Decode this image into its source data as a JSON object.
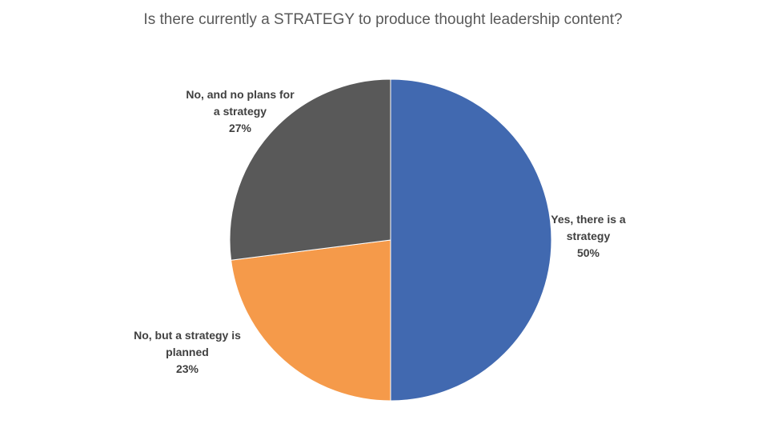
{
  "chart_data": {
    "type": "pie",
    "title": "Is there currently a STRATEGY to produce thought leadership content?",
    "slices": [
      {
        "label_lines": [
          "Yes, there is a",
          "strategy"
        ],
        "value_text": "50%",
        "value": 50,
        "color": "#4169B0"
      },
      {
        "label_lines": [
          "No, but a strategy is",
          "planned"
        ],
        "value_text": "23%",
        "value": 23,
        "color": "#F59A4A"
      },
      {
        "label_lines": [
          "No, and no plans for",
          "a strategy"
        ],
        "value_text": "27%",
        "value": 27,
        "color": "#595959"
      }
    ],
    "start_angle": "12 o'clock",
    "direction": "clockwise",
    "legend": "none (labels beside slices)"
  }
}
